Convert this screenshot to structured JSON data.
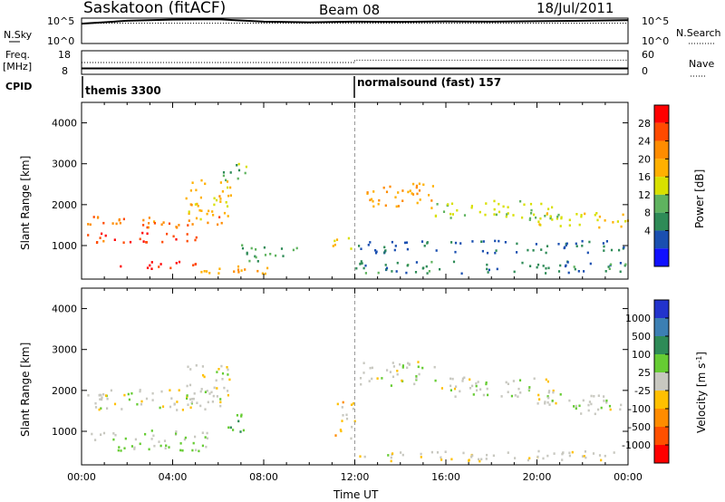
{
  "header": {
    "station": "Saskatoon (fitACF)",
    "beam": "Beam 08",
    "date": "18/Jul/2011"
  },
  "strip_labels": {
    "nsky": "N.Sky",
    "nsearch": "N.Search",
    "freq_line1": "Freq.",
    "freq_line2": "[MHz]",
    "nave": "Nave",
    "cpid": "CPID",
    "nsky_ticks": [
      "10^5",
      "10^0"
    ],
    "nsearch_ticks": [
      "10^5",
      "10^0"
    ],
    "freq_ticks": [
      "18",
      "8"
    ],
    "nave_ticks": [
      "60",
      "0"
    ]
  },
  "cpid_modes": [
    {
      "label": "themis 3300",
      "start_hour": 0
    },
    {
      "label": "normalsound (fast) 157",
      "start_hour": 12
    }
  ],
  "power_scale": {
    "label": "Power [dB]",
    "ticks": [
      "28",
      "24",
      "20",
      "16",
      "12",
      "8",
      "4"
    ],
    "colors": [
      "#ff0000",
      "#ff4a00",
      "#ff8c00",
      "#ffb000",
      "#d8e000",
      "#5fb35f",
      "#2e8b57",
      "#1a4fb0",
      "#1010ff"
    ]
  },
  "velocity_scale": {
    "label_main": "Velocity [m s",
    "label_sup": "-1",
    "label_end": "]",
    "ticks": [
      "1000",
      "500",
      "100",
      "25",
      "-25",
      "-100",
      "-500",
      "-1000"
    ],
    "colors": [
      "#2233cc",
      "#3c7fb3",
      "#2e8b57",
      "#66cc33",
      "#c8c8c0",
      "#ffc000",
      "#ff8c00",
      "#ff5000",
      "#ff0000"
    ]
  },
  "panel_common": {
    "ylabel": "Slant Range [km]",
    "xlabel": "Time UT"
  },
  "chart_data": [
    {
      "type": "line",
      "panel": "N.Sky / N.Search",
      "x_range_hours": [
        0,
        24
      ],
      "series": [
        {
          "name": "N.Sky",
          "x": [
            0,
            2,
            4,
            6,
            8,
            10,
            12,
            14,
            16,
            18,
            20,
            22,
            24
          ],
          "y": [
            8000,
            30000,
            50000,
            60000,
            20000,
            15000,
            20000,
            18000,
            22000,
            20000,
            25000,
            30000,
            40000
          ]
        },
        {
          "name": "N.Search",
          "x": [
            0,
            24
          ],
          "y": [
            10000,
            10000
          ]
        }
      ],
      "yscale": "log",
      "ylim": [
        1,
        100000
      ]
    },
    {
      "type": "line",
      "panel": "Freq / Nave",
      "x_range_hours": [
        0,
        24
      ],
      "series": [
        {
          "name": "Freq",
          "x": [
            0,
            24
          ],
          "y": [
            10.5,
            10.5
          ],
          "unit": "MHz"
        },
        {
          "name": "Nave",
          "x": [
            0,
            12,
            12,
            24
          ],
          "y": [
            30,
            30,
            36,
            36
          ]
        }
      ],
      "freq_ylim": [
        8,
        18
      ],
      "nave_ylim": [
        0,
        60
      ]
    },
    {
      "type": "heatmap",
      "panel": "Power",
      "quantity": "Power",
      "unit": "dB",
      "x_range_hours": [
        0,
        24
      ],
      "ylim": [
        180,
        4500
      ],
      "ytick_values": [
        1000,
        2000,
        3000,
        4000
      ],
      "xtick_labels": [
        "00:00",
        "04:00",
        "08:00",
        "12:00",
        "16:00",
        "20:00",
        "00:00"
      ],
      "colorbar_range": [
        0,
        30
      ],
      "regions": [
        {
          "t": [
            0.2,
            6.2
          ],
          "r": [
            1400,
            1700
          ],
          "v": 22
        },
        {
          "t": [
            0.2,
            5.5
          ],
          "r": [
            1050,
            1300
          ],
          "v": 26
        },
        {
          "t": [
            1.5,
            5.0
          ],
          "r": [
            400,
            600
          ],
          "v": 28
        },
        {
          "t": [
            4.5,
            6.6
          ],
          "r": [
            1600,
            2600
          ],
          "v": 18
        },
        {
          "t": [
            6.2,
            7.2
          ],
          "r": [
            2400,
            3000
          ],
          "v": 12
        },
        {
          "t": [
            5.0,
            9.0
          ],
          "r": [
            280,
            500
          ],
          "v": 20
        },
        {
          "t": [
            7.0,
            9.5
          ],
          "r": [
            600,
            1000
          ],
          "v": 10
        },
        {
          "t": [
            11.0,
            11.8
          ],
          "r": [
            900,
            1300
          ],
          "v": 18
        },
        {
          "t": [
            12.2,
            15.5
          ],
          "r": [
            1900,
            2500
          ],
          "v": 20
        },
        {
          "t": [
            15.5,
            21.0
          ],
          "r": [
            1600,
            2100
          ],
          "v": 14
        },
        {
          "t": [
            20.0,
            24.0
          ],
          "r": [
            1400,
            1800
          ],
          "v": 16
        },
        {
          "t": [
            12.0,
            24.0
          ],
          "r": [
            800,
            1100
          ],
          "v": 6
        },
        {
          "t": [
            12.0,
            24.0
          ],
          "r": [
            300,
            600
          ],
          "v": 8
        }
      ]
    },
    {
      "type": "heatmap",
      "panel": "Velocity",
      "quantity": "Velocity",
      "unit": "m s-1",
      "x_range_hours": [
        0,
        24
      ],
      "ylim": [
        180,
        4500
      ],
      "ytick_values": [
        1000,
        2000,
        3000,
        4000
      ],
      "xtick_labels": [
        "00:00",
        "04:00",
        "08:00",
        "12:00",
        "16:00",
        "20:00",
        "00:00"
      ],
      "colorbar_range": [
        -1000,
        1000
      ],
      "regions": [
        {
          "t": [
            0.2,
            6.2
          ],
          "r": [
            1500,
            2000
          ],
          "v": 0
        },
        {
          "t": [
            0.2,
            5.5
          ],
          "r": [
            500,
            1000
          ],
          "v": 120
        },
        {
          "t": [
            4.5,
            6.6
          ],
          "r": [
            1600,
            2600
          ],
          "v": 0
        },
        {
          "t": [
            6.2,
            7.2
          ],
          "r": [
            900,
            1400
          ],
          "v": 300
        },
        {
          "t": [
            11.0,
            12.0
          ],
          "r": [
            800,
            1700
          ],
          "v": -200
        },
        {
          "t": [
            12.2,
            15.5
          ],
          "r": [
            2100,
            2700
          ],
          "v": 0
        },
        {
          "t": [
            15.5,
            21.0
          ],
          "r": [
            1800,
            2300
          ],
          "v": 0
        },
        {
          "t": [
            20.0,
            24.0
          ],
          "r": [
            1400,
            1900
          ],
          "v": 0
        },
        {
          "t": [
            12.0,
            24.0
          ],
          "r": [
            250,
            500
          ],
          "v": -60
        }
      ]
    }
  ]
}
